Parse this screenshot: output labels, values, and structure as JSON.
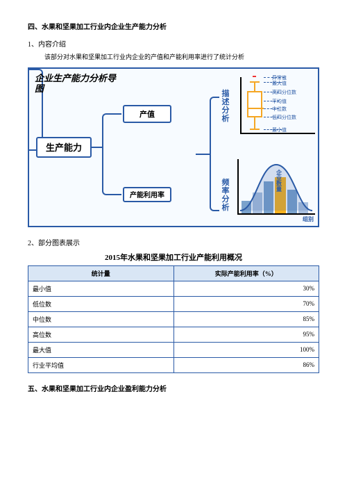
{
  "section4_title": "四、水果和坚果加工行业内企业生产能力分析",
  "sub1": "1、内容介绍",
  "intro": "该部分对水果和坚果加工行业内企业的产值和产能利用率进行了统计分析",
  "diagram": {
    "title": "企业生产能力分析导图",
    "main_node": "生产能力",
    "output_node": "产值",
    "util_node": "产能利用率",
    "desc_label": "描述分析",
    "freq_label": "频率分析",
    "boxplot_labels": {
      "outlier": "异常值",
      "max": "最大值",
      "upper": "高四分位数",
      "mean": "平均值",
      "median": "中位数",
      "lower": "低四分位数",
      "min": "最小值"
    },
    "dist_labels": {
      "count": "企业数量",
      "group": "组别"
    },
    "colors": {
      "border": "#2a5aa6",
      "bg": "#f7fbff",
      "box": "#f5a623",
      "bar_a": "#7aa2cc",
      "bar_b": "#a9c0df",
      "bar_hi": "#f7b21f"
    }
  },
  "sub2": "2、部分图表展示",
  "table": {
    "title": "2015年水果和坚果加工行业产能利用概况",
    "col1": "统计量",
    "col2": "实际产能利用率（%）",
    "rows": [
      {
        "label": "最小值",
        "value": "30%"
      },
      {
        "label": "低位数",
        "value": "70%"
      },
      {
        "label": "中位数",
        "value": "85%"
      },
      {
        "label": "高位数",
        "value": "95%"
      },
      {
        "label": "最大值",
        "value": "100%"
      },
      {
        "label": "行业平均值",
        "value": "86%"
      }
    ]
  },
  "section5_title": "五、水果和坚果加工行业内企业盈利能力分析"
}
